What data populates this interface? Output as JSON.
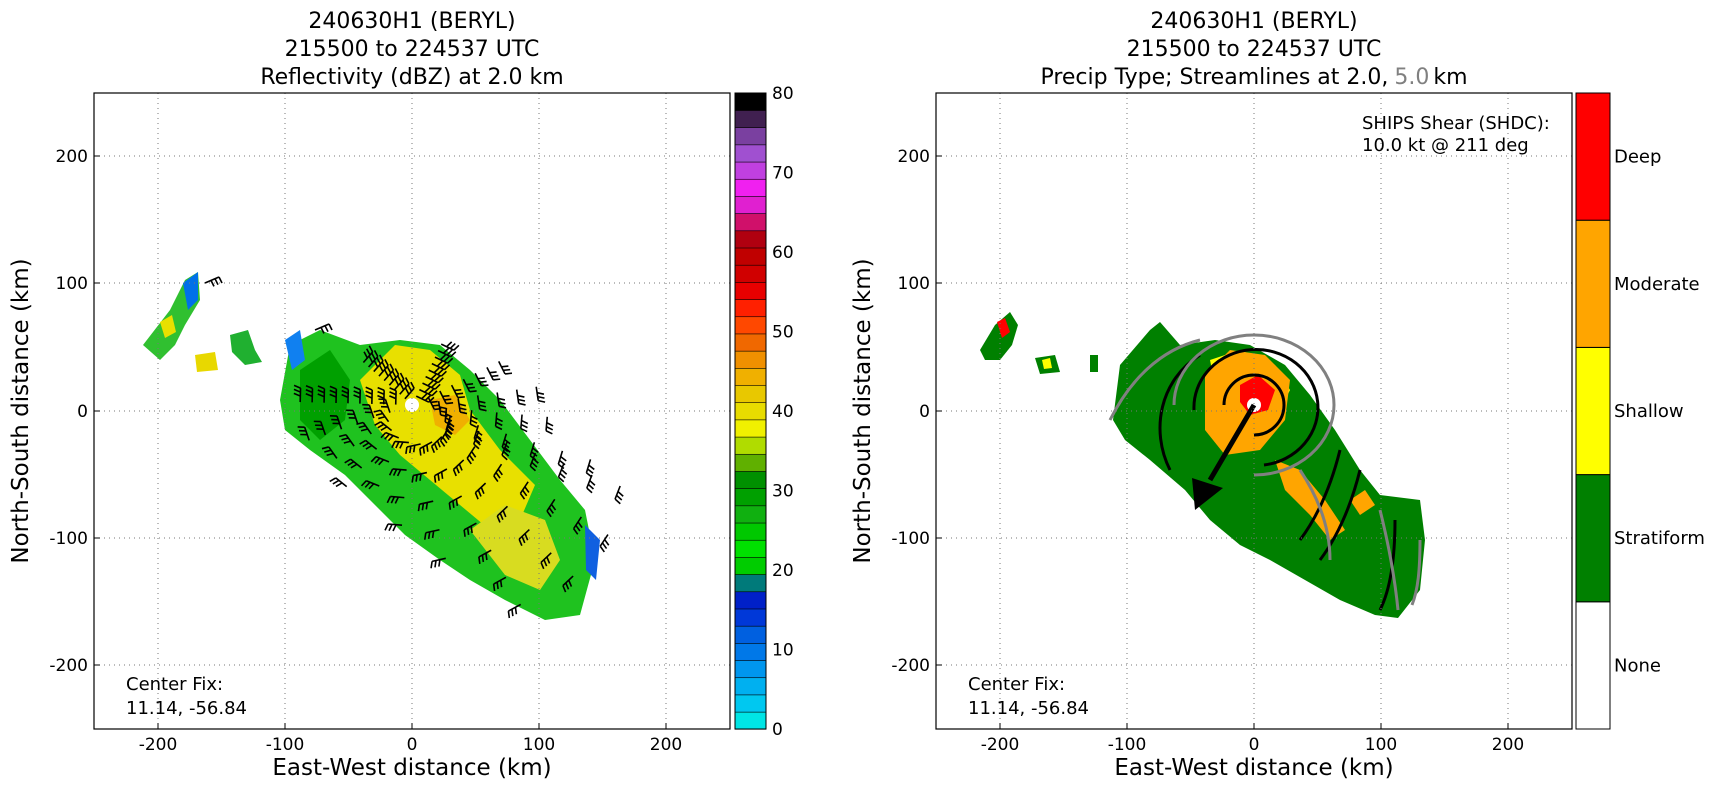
{
  "chart_data": [
    {
      "type": "heatmap",
      "title_lines": [
        "240630H1 (BERYL)",
        "215500 to 224537 UTC",
        "Reflectivity (dBZ) at 2.0 km"
      ],
      "xlabel": "East-West distance (km)",
      "ylabel": "North-South distance (km)",
      "xlim": [
        -250,
        250
      ],
      "ylim": [
        -250,
        250
      ],
      "xticks": [
        -200,
        -100,
        0,
        100,
        200
      ],
      "yticks": [
        -200,
        -100,
        0,
        100,
        200
      ],
      "grid": true,
      "annotation": [
        "Center Fix:",
        "11.14, -56.84"
      ],
      "overlay": "wind barbs",
      "colorbar": {
        "range": [
          0,
          80
        ],
        "ticks": [
          0,
          10,
          20,
          30,
          40,
          50,
          60,
          70,
          80
        ],
        "colors": [
          "#00e5e5",
          "#00c8f0",
          "#00b0f0",
          "#0096ee",
          "#0078e8",
          "#0060e0",
          "#0038d8",
          "#0020c8",
          "#007a7a",
          "#00cc00",
          "#00e000",
          "#00c800",
          "#10b010",
          "#00a000",
          "#009000",
          "#60b000",
          "#b0dc00",
          "#f0f000",
          "#e8dc00",
          "#e8c800",
          "#f0b000",
          "#f09000",
          "#f06800",
          "#ff4800",
          "#ff2000",
          "#e80000",
          "#d00000",
          "#c00000",
          "#b00010",
          "#d0106a",
          "#e020d0",
          "#f020f0",
          "#c040e0",
          "#a050d0",
          "#7a40a0",
          "#402050",
          "#000000"
        ]
      }
    },
    {
      "type": "heatmap",
      "title_lines": [
        "240630H1 (BERYL)",
        "215500 to 224537 UTC",
        "Precip Type; Streamlines at 2.0,",
        "5.0",
        "km"
      ],
      "xlabel": "East-West distance (km)",
      "ylabel": "North-South distance (km)",
      "xlim": [
        -250,
        250
      ],
      "ylim": [
        -250,
        250
      ],
      "xticks": [
        -200,
        -100,
        0,
        100,
        200
      ],
      "yticks": [
        -200,
        -100,
        0,
        100,
        200
      ],
      "grid": true,
      "annotation": [
        "Center Fix:",
        "11.14, -56.84"
      ],
      "shear_text": [
        "SHIPS Shear (SHDC):",
        "10.0 kt @ 211 deg"
      ],
      "shear": {
        "speed_kt": 10.0,
        "direction_deg": 211
      },
      "overlay": "streamlines (2.0 km black, 5.0 km gray)",
      "categories": [
        "None",
        "Stratiform",
        "Shallow",
        "Moderate",
        "Deep"
      ],
      "category_colors": [
        "#ffffff",
        "#008000",
        "#ffff00",
        "#ffa500",
        "#ff0000"
      ]
    }
  ]
}
